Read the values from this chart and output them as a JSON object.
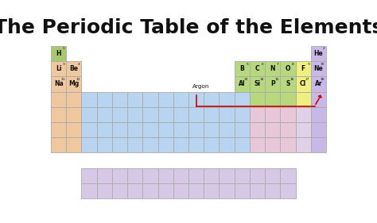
{
  "title": "The Periodic Table of the Elements",
  "title_fontsize": 18,
  "background_color": "#ffffff",
  "named_elements": [
    {
      "symbol": "H",
      "number": "1",
      "col": 0,
      "row": 0,
      "color": "#a8c870"
    },
    {
      "symbol": "He",
      "number": "2",
      "col": 17,
      "row": 0,
      "color": "#c8b8e8"
    },
    {
      "symbol": "Li",
      "number": "3",
      "col": 0,
      "row": 1,
      "color": "#f0c8a0"
    },
    {
      "symbol": "Be",
      "number": "4",
      "col": 1,
      "row": 1,
      "color": "#f0c8a0"
    },
    {
      "symbol": "B",
      "number": "5",
      "col": 12,
      "row": 1,
      "color": "#b8d880"
    },
    {
      "symbol": "C",
      "number": "6",
      "col": 13,
      "row": 1,
      "color": "#b8d880"
    },
    {
      "symbol": "N",
      "number": "7",
      "col": 14,
      "row": 1,
      "color": "#b8d880"
    },
    {
      "symbol": "O",
      "number": "8",
      "col": 15,
      "row": 1,
      "color": "#b8d880"
    },
    {
      "symbol": "F",
      "number": "9",
      "col": 16,
      "row": 1,
      "color": "#f0f080"
    },
    {
      "symbol": "Ne",
      "number": "10",
      "col": 17,
      "row": 1,
      "color": "#c8b8e8"
    },
    {
      "symbol": "Na",
      "number": "11",
      "col": 0,
      "row": 2,
      "color": "#f0c8a0"
    },
    {
      "symbol": "Mg",
      "number": "12",
      "col": 1,
      "row": 2,
      "color": "#f0c8a0"
    },
    {
      "symbol": "Al",
      "number": "13",
      "col": 12,
      "row": 2,
      "color": "#b8d880"
    },
    {
      "symbol": "Si",
      "number": "14",
      "col": 13,
      "row": 2,
      "color": "#b8d880"
    },
    {
      "symbol": "P",
      "number": "15",
      "col": 14,
      "row": 2,
      "color": "#b8d880"
    },
    {
      "symbol": "S",
      "number": "16",
      "col": 15,
      "row": 2,
      "color": "#b8d880"
    },
    {
      "symbol": "Cl",
      "number": "17",
      "col": 16,
      "row": 2,
      "color": "#f0f080"
    },
    {
      "symbol": "Ar",
      "number": "18",
      "col": 17,
      "row": 2,
      "color": "#c8b8e8"
    }
  ],
  "period4_cells": [
    {
      "col": 0,
      "color": "#f0c8a0"
    },
    {
      "col": 1,
      "color": "#f0c8a0"
    },
    {
      "col": 2,
      "color": "#b8d4f0"
    },
    {
      "col": 3,
      "color": "#b8d4f0"
    },
    {
      "col": 4,
      "color": "#b8d4f0"
    },
    {
      "col": 5,
      "color": "#b8d4f0"
    },
    {
      "col": 6,
      "color": "#b8d4f0"
    },
    {
      "col": 7,
      "color": "#b8d4f0"
    },
    {
      "col": 8,
      "color": "#b8d4f0"
    },
    {
      "col": 9,
      "color": "#b8d4f0"
    },
    {
      "col": 10,
      "color": "#b8d4f0"
    },
    {
      "col": 11,
      "color": "#b8d4f0"
    },
    {
      "col": 12,
      "color": "#b8d4f0"
    },
    {
      "col": 13,
      "color": "#b8d880"
    },
    {
      "col": 14,
      "color": "#b8d880"
    },
    {
      "col": 15,
      "color": "#b8d880"
    },
    {
      "col": 16,
      "color": "#f0f080"
    },
    {
      "col": 17,
      "color": "#c8b8e8"
    }
  ],
  "period5_cells": [
    {
      "col": 0,
      "color": "#f0c8a0"
    },
    {
      "col": 1,
      "color": "#f0c8a0"
    },
    {
      "col": 2,
      "color": "#b8d4f0"
    },
    {
      "col": 3,
      "color": "#b8d4f0"
    },
    {
      "col": 4,
      "color": "#b8d4f0"
    },
    {
      "col": 5,
      "color": "#b8d4f0"
    },
    {
      "col": 6,
      "color": "#b8d4f0"
    },
    {
      "col": 7,
      "color": "#b8d4f0"
    },
    {
      "col": 8,
      "color": "#b8d4f0"
    },
    {
      "col": 9,
      "color": "#b8d4f0"
    },
    {
      "col": 10,
      "color": "#b8d4f0"
    },
    {
      "col": 11,
      "color": "#b8d4f0"
    },
    {
      "col": 12,
      "color": "#b8d4f0"
    },
    {
      "col": 13,
      "color": "#e8c8d8"
    },
    {
      "col": 14,
      "color": "#e8c8d8"
    },
    {
      "col": 15,
      "color": "#e8c8d8"
    },
    {
      "col": 16,
      "color": "#e0d0e8"
    },
    {
      "col": 17,
      "color": "#c8b8e8"
    }
  ],
  "period6_cells": [
    {
      "col": 0,
      "color": "#f0c8a0"
    },
    {
      "col": 1,
      "color": "#f0c8a0"
    },
    {
      "col": 2,
      "color": "#b8d4f0"
    },
    {
      "col": 3,
      "color": "#b8d4f0"
    },
    {
      "col": 4,
      "color": "#b8d4f0"
    },
    {
      "col": 5,
      "color": "#b8d4f0"
    },
    {
      "col": 6,
      "color": "#b8d4f0"
    },
    {
      "col": 7,
      "color": "#b8d4f0"
    },
    {
      "col": 8,
      "color": "#b8d4f0"
    },
    {
      "col": 9,
      "color": "#b8d4f0"
    },
    {
      "col": 10,
      "color": "#b8d4f0"
    },
    {
      "col": 11,
      "color": "#b8d4f0"
    },
    {
      "col": 12,
      "color": "#b8d4f0"
    },
    {
      "col": 13,
      "color": "#e8c8d8"
    },
    {
      "col": 14,
      "color": "#e8c8d8"
    },
    {
      "col": 15,
      "color": "#e8c8d8"
    },
    {
      "col": 16,
      "color": "#e0d0e8"
    },
    {
      "col": 17,
      "color": "#c8b8e8"
    }
  ],
  "period7_cells": [
    {
      "col": 0,
      "color": "#f0c8a0"
    },
    {
      "col": 1,
      "color": "#f0c8a0"
    },
    {
      "col": 2,
      "color": "#b8d4f0"
    },
    {
      "col": 3,
      "color": "#b8d4f0"
    },
    {
      "col": 4,
      "color": "#b8d4f0"
    },
    {
      "col": 5,
      "color": "#b8d4f0"
    },
    {
      "col": 6,
      "color": "#b8d4f0"
    },
    {
      "col": 7,
      "color": "#b8d4f0"
    },
    {
      "col": 8,
      "color": "#b8d4f0"
    },
    {
      "col": 9,
      "color": "#b8d4f0"
    },
    {
      "col": 10,
      "color": "#b8d4f0"
    },
    {
      "col": 11,
      "color": "#b8d4f0"
    },
    {
      "col": 12,
      "color": "#b8d4f0"
    },
    {
      "col": 13,
      "color": "#e8c8d8"
    },
    {
      "col": 14,
      "color": "#e8c8d8"
    },
    {
      "col": 15,
      "color": "#e8c8d8"
    },
    {
      "col": 16,
      "color": "#e0d0e8"
    },
    {
      "col": 17,
      "color": "#c8b8e8"
    }
  ],
  "lanthanide_cols": [
    2,
    3,
    4,
    5,
    6,
    7,
    8,
    9,
    10,
    11,
    12,
    13,
    14,
    15
  ],
  "lanthanide_color": "#d8c8e8",
  "lanthanide_rows": [
    8,
    9
  ],
  "argon_label": "Argon",
  "red_color": "#cc0000",
  "border_color": "#aaaaaa",
  "border_lw": 0.6
}
